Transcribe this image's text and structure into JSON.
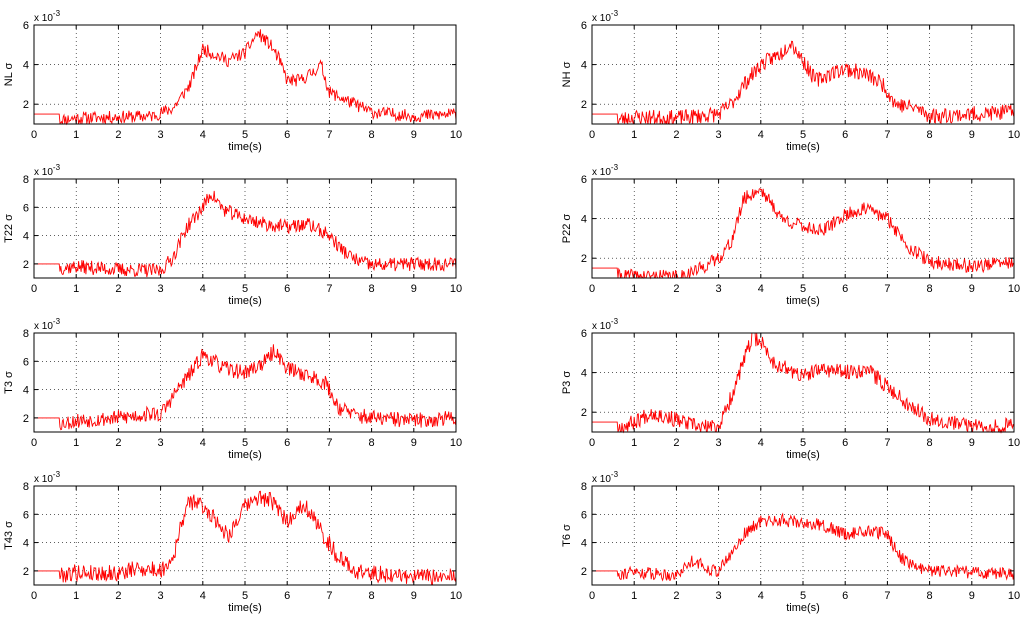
{
  "figure": {
    "background": "#ffffff",
    "axes_color": "#000000",
    "grid_color": "#000000",
    "line_color": "#ff0000",
    "exponent_prefix": "x 10",
    "exponent": "-3"
  },
  "chart_data": [
    {
      "type": "line",
      "ylabel": "NL σ",
      "xlabel": "time(s)",
      "xlim": [
        0,
        10
      ],
      "ylim": [
        1,
        6
      ],
      "xticks": [
        "0",
        "1",
        "2",
        "3",
        "4",
        "5",
        "6",
        "7",
        "8",
        "9",
        "10"
      ],
      "yticks": [
        "2",
        "4",
        "6"
      ],
      "ytick_values": [
        2,
        4,
        6
      ],
      "grid": true,
      "series": [
        {
          "color": "#ff0000",
          "noise": 0.32,
          "seed": 11,
          "x": [
            0,
            0.6,
            0.6,
            1,
            2,
            2.8,
            3.3,
            3.7,
            4,
            4.3,
            4.6,
            5,
            5.3,
            5.6,
            5.8,
            6,
            6.3,
            6.6,
            6.8,
            7,
            7.5,
            8,
            8.5,
            9,
            10
          ],
          "y": [
            1.5,
            1.5,
            1.2,
            1.3,
            1.35,
            1.4,
            1.8,
            3.0,
            4.8,
            4.5,
            4.2,
            4.6,
            5.6,
            5.0,
            4.3,
            3.2,
            3.2,
            3.6,
            4.0,
            2.6,
            2.1,
            1.6,
            1.5,
            1.4,
            1.5
          ]
        }
      ]
    },
    {
      "type": "line",
      "ylabel": "NH σ",
      "xlabel": "time(s)",
      "xlim": [
        0,
        10
      ],
      "ylim": [
        1,
        6
      ],
      "xticks": [
        "0",
        "1",
        "2",
        "3",
        "4",
        "5",
        "6",
        "7",
        "8",
        "9",
        "10"
      ],
      "yticks": [
        "2",
        "4",
        "6"
      ],
      "ytick_values": [
        2,
        4,
        6
      ],
      "grid": true,
      "series": [
        {
          "color": "#ff0000",
          "noise": 0.4,
          "seed": 23,
          "x": [
            0,
            0.6,
            0.6,
            1,
            2,
            3,
            3.3,
            3.6,
            4,
            4.5,
            4.7,
            5,
            5.3,
            5.7,
            6,
            6.5,
            6.9,
            7.2,
            7.7,
            8,
            9,
            10
          ],
          "y": [
            1.5,
            1.5,
            1.2,
            1.35,
            1.3,
            1.5,
            2.0,
            3.0,
            4.0,
            4.6,
            5.2,
            4.2,
            3.2,
            3.6,
            3.8,
            3.5,
            3.0,
            2.0,
            1.8,
            1.4,
            1.5,
            1.6
          ]
        }
      ]
    },
    {
      "type": "line",
      "ylabel": "T22 σ",
      "xlabel": "time(s)",
      "xlim": [
        0,
        10
      ],
      "ylim": [
        1,
        8
      ],
      "xticks": [
        "0",
        "1",
        "2",
        "3",
        "4",
        "5",
        "6",
        "7",
        "8",
        "9",
        "10"
      ],
      "yticks": [
        "2",
        "4",
        "6",
        "8"
      ],
      "ytick_values": [
        2,
        4,
        6,
        8
      ],
      "grid": true,
      "series": [
        {
          "color": "#ff0000",
          "noise": 0.5,
          "seed": 37,
          "x": [
            0,
            0.6,
            0.6,
            1,
            2,
            3,
            3.3,
            3.6,
            4,
            4.2,
            4.5,
            5,
            5.5,
            6,
            6.5,
            7,
            7.3,
            7.6,
            8,
            9,
            10
          ],
          "y": [
            2.0,
            2.0,
            1.7,
            1.8,
            1.6,
            1.5,
            2.5,
            4.5,
            6.0,
            7.0,
            5.8,
            5.2,
            4.8,
            4.6,
            4.8,
            4.0,
            3.0,
            2.3,
            1.9,
            2.0,
            2.0
          ]
        }
      ]
    },
    {
      "type": "line",
      "ylabel": "P22 σ",
      "xlabel": "time(s)",
      "xlim": [
        0,
        10
      ],
      "ylim": [
        1,
        6
      ],
      "xticks": [
        "0",
        "1",
        "2",
        "3",
        "4",
        "5",
        "6",
        "7",
        "8",
        "9",
        "10"
      ],
      "yticks": [
        "2",
        "4",
        "6"
      ],
      "ytick_values": [
        2,
        4,
        6
      ],
      "grid": true,
      "series": [
        {
          "color": "#ff0000",
          "noise": 0.35,
          "seed": 41,
          "x": [
            0,
            0.6,
            0.6,
            1,
            2,
            2.5,
            3,
            3.3,
            3.6,
            4,
            4.5,
            5,
            5.5,
            6,
            6.5,
            7,
            7.5,
            8,
            9,
            10
          ],
          "y": [
            1.5,
            1.5,
            1.1,
            1.1,
            1.05,
            1.4,
            2.0,
            2.8,
            5.0,
            5.5,
            4.0,
            3.6,
            3.4,
            4.2,
            4.5,
            4.0,
            2.6,
            1.8,
            1.6,
            1.8
          ]
        }
      ]
    },
    {
      "type": "line",
      "ylabel": "T3 σ",
      "xlabel": "time(s)",
      "xlim": [
        0,
        10
      ],
      "ylim": [
        1,
        8
      ],
      "xticks": [
        "0",
        "1",
        "2",
        "3",
        "4",
        "5",
        "6",
        "7",
        "8",
        "9",
        "10"
      ],
      "yticks": [
        "2",
        "4",
        "6",
        "8"
      ],
      "ytick_values": [
        2,
        4,
        6,
        8
      ],
      "grid": true,
      "series": [
        {
          "color": "#ff0000",
          "noise": 0.55,
          "seed": 53,
          "x": [
            0,
            0.6,
            0.6,
            1,
            2,
            2.8,
            3,
            3.4,
            3.8,
            4,
            4.5,
            5,
            5.5,
            5.7,
            6,
            6.5,
            6.9,
            7.2,
            7.6,
            8,
            9,
            10
          ],
          "y": [
            2.0,
            2.0,
            1.6,
            1.8,
            2.0,
            2.3,
            2.2,
            4.0,
            5.5,
            6.5,
            5.5,
            5.2,
            6.0,
            6.8,
            5.5,
            5.0,
            4.5,
            2.8,
            2.2,
            2.0,
            1.8,
            2.0
          ]
        }
      ]
    },
    {
      "type": "line",
      "ylabel": "P3 σ",
      "xlabel": "time(s)",
      "xlim": [
        0,
        10
      ],
      "ylim": [
        1,
        6
      ],
      "xticks": [
        "0",
        "1",
        "2",
        "3",
        "4",
        "5",
        "6",
        "7",
        "8",
        "9",
        "10"
      ],
      "yticks": [
        "2",
        "4",
        "6"
      ],
      "ytick_values": [
        2,
        4,
        6
      ],
      "grid": true,
      "series": [
        {
          "color": "#ff0000",
          "noise": 0.4,
          "seed": 67,
          "x": [
            0,
            0.6,
            0.6,
            1,
            1.4,
            2,
            2.6,
            3,
            3.2,
            3.5,
            3.8,
            4,
            4.3,
            5,
            5.5,
            6,
            6.5,
            7,
            7.5,
            8,
            9,
            10
          ],
          "y": [
            1.5,
            1.5,
            1.2,
            1.5,
            2.0,
            1.6,
            1.2,
            1.3,
            2.2,
            4.0,
            5.8,
            5.6,
            4.5,
            3.8,
            4.2,
            4.0,
            4.2,
            3.3,
            2.4,
            1.7,
            1.3,
            1.3
          ]
        }
      ]
    },
    {
      "type": "line",
      "ylabel": "T43 σ",
      "xlabel": "time(s)",
      "xlim": [
        0,
        10
      ],
      "ylim": [
        1,
        8
      ],
      "xticks": [
        "0",
        "1",
        "2",
        "3",
        "4",
        "5",
        "6",
        "7",
        "8",
        "9",
        "10"
      ],
      "yticks": [
        "2",
        "4",
        "6",
        "8"
      ],
      "ytick_values": [
        2,
        4,
        6,
        8
      ],
      "grid": true,
      "series": [
        {
          "color": "#ff0000",
          "noise": 0.6,
          "seed": 79,
          "x": [
            0,
            0.6,
            0.6,
            1,
            2,
            2.5,
            3,
            3.3,
            3.6,
            3.8,
            4.2,
            4.6,
            5,
            5.3,
            5.6,
            6,
            6.4,
            6.8,
            7.2,
            7.6,
            8,
            9,
            10
          ],
          "y": [
            2.0,
            2.0,
            1.7,
            1.9,
            1.8,
            2.2,
            2.0,
            3.0,
            6.5,
            7.0,
            6.0,
            4.5,
            6.5,
            7.2,
            7.0,
            5.5,
            6.8,
            4.8,
            3.0,
            2.0,
            1.8,
            1.6,
            1.5
          ]
        }
      ]
    },
    {
      "type": "line",
      "ylabel": "T6 σ",
      "xlabel": "time(s)",
      "xlim": [
        0,
        10
      ],
      "ylim": [
        1,
        8
      ],
      "xticks": [
        "0",
        "1",
        "2",
        "3",
        "4",
        "5",
        "6",
        "7",
        "8",
        "9",
        "10"
      ],
      "yticks": [
        "2",
        "4",
        "6",
        "8"
      ],
      "ytick_values": [
        2,
        4,
        6,
        8
      ],
      "grid": true,
      "series": [
        {
          "color": "#ff0000",
          "noise": 0.45,
          "seed": 91,
          "x": [
            0,
            0.6,
            0.6,
            1,
            2,
            2.4,
            2.7,
            3,
            3.3,
            3.6,
            4,
            4.5,
            5,
            5.5,
            6,
            6.5,
            7,
            7.3,
            7.7,
            8,
            9,
            10
          ],
          "y": [
            2.0,
            2.0,
            1.8,
            1.9,
            1.7,
            2.8,
            2.2,
            2.0,
            3.2,
            4.6,
            5.5,
            5.6,
            5.4,
            5.2,
            4.6,
            4.8,
            4.6,
            3.0,
            2.2,
            2.0,
            1.9,
            1.8
          ]
        }
      ]
    }
  ]
}
